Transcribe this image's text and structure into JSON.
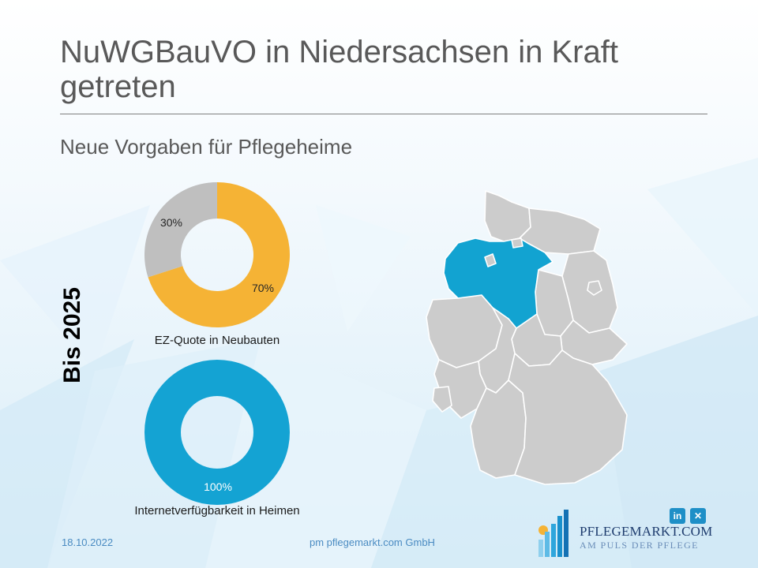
{
  "slide": {
    "title": "NuWGBauVO in Niedersachsen in Kraft getreten",
    "subtitle": "Neue Vorgaben für Pflegeheime",
    "side_label": "Bis 2025"
  },
  "chart_data": [
    {
      "type": "pie",
      "variant": "donut",
      "title": "EZ-Quote in Neubauten",
      "slices": [
        {
          "value": 70,
          "label": "70%",
          "color": "#f5b335"
        },
        {
          "value": 30,
          "label": "30%",
          "color": "#bfbfbf"
        }
      ],
      "legend": "none"
    },
    {
      "type": "pie",
      "variant": "donut",
      "title": "Internetverfügbarkeit in Heimen",
      "slices": [
        {
          "value": 100,
          "label": "100%",
          "color": "#14a3d3"
        }
      ],
      "legend": "none"
    }
  ],
  "map": {
    "base_color": "#cccccc",
    "border_color": "#ffffff",
    "highlight_color": "#12a3d1"
  },
  "footer": {
    "date": "18.10.2022",
    "company": "pm pflegemarkt.com GmbH"
  },
  "social": {
    "linkedin": "in",
    "xing": "✕"
  },
  "brand": {
    "name": "PFLEGEMARKT.COM",
    "tagline": "AM PULS DER PFLEGE"
  }
}
